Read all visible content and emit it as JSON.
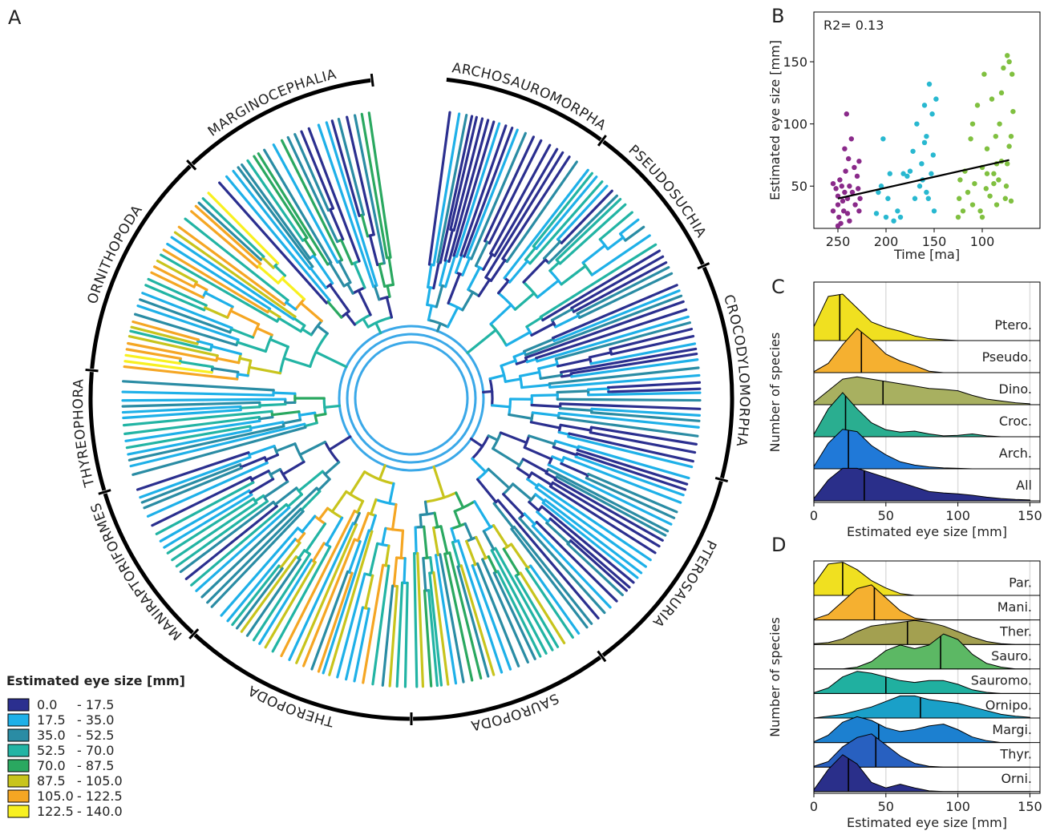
{
  "chart_data": [
    {
      "type": "phylogeny",
      "panel": "A",
      "clades": [
        "ARCHOSAUROMORPHA",
        "PSEUDOSUCHIA",
        "CROCODYLOMORPHA",
        "PTEROSAURIA",
        "SAUROPODA",
        "THEROPODA",
        "MANIRAPTORIFORMES",
        "THYREOPHORA",
        "ORNITHOPODA",
        "MARGINOCEPHALIA"
      ],
      "legend_title": "Estimated eye size [mm]",
      "legend": [
        {
          "low": "0.0",
          "high": "- 17.5",
          "color": "#2b2f8f"
        },
        {
          "low": "17.5",
          "high": "- 35.0",
          "color": "#1eb0e8"
        },
        {
          "low": "35.0",
          "high": "- 52.5",
          "color": "#2a8ca4"
        },
        {
          "low": "52.5",
          "high": "- 70.0",
          "color": "#22b4a4"
        },
        {
          "low": "70.0",
          "high": "- 87.5",
          "color": "#2aa860"
        },
        {
          "low": "87.5",
          "high": "- 105.0",
          "color": "#c8c41c"
        },
        {
          "low": "105.0",
          "high": "- 122.5",
          "color": "#f5a623"
        },
        {
          "low": "122.5",
          "high": "- 140.0",
          "color": "#f8f020"
        }
      ]
    },
    {
      "type": "scatter",
      "panel": "B",
      "annotation": "R2= 0.13",
      "x_label": "Time [ma]",
      "y_label": "Estimated eye size [mm]",
      "xlim": [
        275,
        40
      ],
      "xticks": [
        250,
        200,
        150,
        100
      ],
      "ylim": [
        16,
        190
      ],
      "yticks": [
        50,
        100,
        150
      ],
      "series": [
        {
          "color": "#8a2a8a",
          "x": [
            255,
            255,
            252,
            250,
            250,
            249,
            248,
            247,
            246,
            245,
            244,
            243,
            242,
            240,
            240,
            239,
            238,
            236,
            235,
            233,
            232,
            230,
            229,
            228,
            228,
            227,
            243,
            241,
            238,
            250
          ],
          "values": [
            52,
            30,
            48,
            42,
            35,
            25,
            55,
            20,
            50,
            38,
            30,
            45,
            62,
            40,
            28,
            72,
            50,
            88,
            45,
            65,
            35,
            58,
            48,
            30,
            70,
            40,
            80,
            108,
            22,
            18
          ]
        },
        {
          "color": "#28b8d0",
          "x": [
            210,
            208,
            205,
            203,
            200,
            198,
            196,
            192,
            188,
            185,
            182,
            178,
            175,
            172,
            170,
            168,
            165,
            163,
            160,
            158,
            156,
            155,
            153,
            152,
            150,
            148,
            160,
            158,
            162,
            151
          ],
          "values": [
            28,
            45,
            50,
            88,
            25,
            40,
            60,
            22,
            30,
            25,
            60,
            58,
            62,
            78,
            40,
            100,
            50,
            68,
            115,
            45,
            40,
            132,
            60,
            108,
            30,
            120,
            85,
            90,
            55,
            75
          ]
        },
        {
          "color": "#80c040",
          "x": [
            125,
            124,
            123,
            120,
            118,
            115,
            112,
            110,
            108,
            105,
            102,
            100,
            98,
            96,
            95,
            92,
            90,
            88,
            86,
            85,
            83,
            82,
            80,
            78,
            76,
            75,
            74,
            72,
            70,
            68,
            70,
            72,
            85,
            88,
            110,
            100,
            95,
            80,
            74,
            69
          ],
          "values": [
            25,
            40,
            55,
            30,
            62,
            45,
            88,
            35,
            52,
            115,
            30,
            65,
            140,
            48,
            80,
            42,
            120,
            60,
            90,
            35,
            55,
            100,
            70,
            145,
            40,
            50,
            155,
            82,
            90,
            110,
            38,
            150,
            68,
            52,
            100,
            25,
            60,
            125,
            68,
            140
          ]
        }
      ],
      "trend": {
        "color": "#000000",
        "x": [
          250,
          72
        ],
        "values": [
          40,
          71
        ]
      }
    },
    {
      "type": "ridgeline",
      "panel": "C",
      "x_label": "Estimated eye size [mm]",
      "y_label": "Number of species",
      "xlim": [
        0,
        157
      ],
      "xticks": [
        0,
        50,
        100,
        150
      ],
      "grid": true,
      "x": [
        0,
        10,
        20,
        30,
        40,
        50,
        60,
        70,
        80,
        90,
        100,
        110,
        120,
        130,
        140,
        150
      ],
      "series": [
        {
          "name": "Ptero.",
          "color": "#f0e020",
          "median": 18,
          "values": [
            0.3,
            0.95,
            1.0,
            0.7,
            0.4,
            0.28,
            0.2,
            0.1,
            0.04,
            0.02,
            0,
            0,
            0,
            0,
            0,
            0
          ]
        },
        {
          "name": "Pseudo.",
          "color": "#f5b030",
          "median": 33,
          "values": [
            0.02,
            0.2,
            0.6,
            0.95,
            0.7,
            0.4,
            0.25,
            0.15,
            0.03,
            0,
            0,
            0,
            0,
            0,
            0,
            0
          ]
        },
        {
          "name": "Dino.",
          "color": "#a8b060",
          "median": 48,
          "values": [
            0.05,
            0.3,
            0.55,
            0.6,
            0.55,
            0.5,
            0.45,
            0.4,
            0.35,
            0.33,
            0.3,
            0.2,
            0.12,
            0.08,
            0.04,
            0.02
          ]
        },
        {
          "name": "Croc.",
          "color": "#2aae90",
          "median": 22,
          "values": [
            0.05,
            0.6,
            0.95,
            0.6,
            0.3,
            0.15,
            0.1,
            0.12,
            0.06,
            0.02,
            0.03,
            0.06,
            0.02,
            0,
            0,
            0
          ]
        },
        {
          "name": "Arch.",
          "color": "#2079d8",
          "median": 24,
          "values": [
            0.05,
            0.55,
            0.85,
            0.8,
            0.5,
            0.3,
            0.15,
            0.08,
            0.04,
            0.02,
            0.01,
            0,
            0,
            0,
            0,
            0
          ]
        },
        {
          "name": "All",
          "color": "#2a2f8a",
          "median": 35,
          "values": [
            0.05,
            0.45,
            0.7,
            0.7,
            0.6,
            0.5,
            0.4,
            0.3,
            0.2,
            0.17,
            0.15,
            0.12,
            0.08,
            0.05,
            0.03,
            0.02
          ]
        }
      ]
    },
    {
      "type": "ridgeline",
      "panel": "D",
      "x_label": "Estimated eye size [mm]",
      "y_label": "Number of species",
      "xlim": [
        0,
        157
      ],
      "xticks": [
        0,
        50,
        100,
        150
      ],
      "grid": true,
      "x": [
        0,
        10,
        20,
        30,
        40,
        50,
        60,
        70,
        80,
        90,
        100,
        110,
        120,
        130,
        140,
        150
      ],
      "series": [
        {
          "name": "Par.",
          "color": "#f0e020",
          "median": 20,
          "values": [
            0.3,
            0.85,
            0.9,
            0.7,
            0.4,
            0.2,
            0.05,
            0,
            0,
            0,
            0,
            0,
            0,
            0,
            0,
            0
          ]
        },
        {
          "name": "Mani.",
          "color": "#f5b030",
          "median": 42,
          "values": [
            0.02,
            0.15,
            0.5,
            0.85,
            0.95,
            0.6,
            0.25,
            0.05,
            0,
            0,
            0,
            0,
            0,
            0,
            0,
            0
          ]
        },
        {
          "name": "Ther.",
          "color": "#a3a050",
          "median": 65,
          "values": [
            0.02,
            0.05,
            0.15,
            0.35,
            0.5,
            0.55,
            0.6,
            0.65,
            0.6,
            0.5,
            0.35,
            0.2,
            0.08,
            0.02,
            0,
            0
          ]
        },
        {
          "name": "Sauro.",
          "color": "#5cb864",
          "median": 88,
          "values": [
            0,
            0,
            0,
            0.05,
            0.2,
            0.5,
            0.65,
            0.55,
            0.65,
            0.95,
            0.8,
            0.4,
            0.15,
            0.05,
            0,
            0
          ]
        },
        {
          "name": "Sauromo.",
          "color": "#20b0a0",
          "median": 50,
          "values": [
            0.02,
            0.15,
            0.45,
            0.6,
            0.55,
            0.45,
            0.35,
            0.3,
            0.35,
            0.35,
            0.25,
            0.1,
            0.03,
            0,
            0,
            0
          ]
        },
        {
          "name": "Ornipo.",
          "color": "#1aa0c8",
          "median": 74,
          "values": [
            0,
            0.05,
            0.1,
            0.2,
            0.3,
            0.45,
            0.6,
            0.6,
            0.5,
            0.45,
            0.4,
            0.3,
            0.2,
            0.1,
            0.05,
            0.02
          ]
        },
        {
          "name": "Margi.",
          "color": "#1c80d0",
          "median": 45,
          "values": [
            0.02,
            0.2,
            0.55,
            0.7,
            0.6,
            0.4,
            0.3,
            0.35,
            0.45,
            0.5,
            0.35,
            0.15,
            0.05,
            0,
            0,
            0
          ]
        },
        {
          "name": "Thyr.",
          "color": "#2860c0",
          "median": 43,
          "values": [
            0.02,
            0.15,
            0.55,
            0.8,
            0.9,
            0.6,
            0.3,
            0.1,
            0.02,
            0,
            0,
            0,
            0,
            0,
            0,
            0
          ]
        },
        {
          "name": "Orni.",
          "color": "#2a2f8a",
          "median": 24,
          "values": [
            0.05,
            0.6,
            1.0,
            0.75,
            0.25,
            0.1,
            0.2,
            0.1,
            0.02,
            0,
            0,
            0,
            0,
            0,
            0,
            0
          ]
        }
      ]
    }
  ]
}
